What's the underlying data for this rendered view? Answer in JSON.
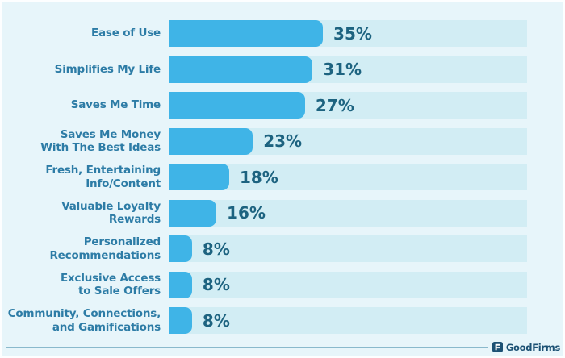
{
  "chart_data": {
    "type": "bar",
    "orientation": "horizontal",
    "title": "",
    "categories": [
      "Ease of Use",
      "Simplifies My Life",
      "Saves Me Time",
      "Saves Me Money\nWith The Best Ideas",
      "Fresh, Entertaining\nInfo/Content",
      "Valuable Loyalty\nRewards",
      "Personalized\nRecommendations",
      "Exclusive Access\nto Sale Offers",
      "Community, Connections,\nand Gamifications"
    ],
    "values": [
      35,
      31,
      27,
      23,
      18,
      16,
      8,
      8,
      8
    ],
    "value_labels": [
      "35%",
      "31%",
      "27%",
      "23%",
      "18%",
      "16%",
      "8%",
      "8%",
      "8%"
    ],
    "xlim": [
      0,
      100
    ],
    "grid": false,
    "legend": "none",
    "bar_width_pct": [
      42.9,
      40.0,
      37.9,
      23.3,
      16.7,
      13.1,
      6.3,
      6.3,
      6.3
    ],
    "colors": {
      "background": "#e7f5fa",
      "track": "#d2edf4",
      "bar": "#3fb4e7",
      "category_label": "#2d7ca6",
      "value_label": "#1d6380"
    }
  },
  "footer": {
    "brand_label": "GoodFirms",
    "brand_icon": "goodfirms-logo-icon",
    "rule_color": "#8ab9cc",
    "brand_color": "#1c5174"
  }
}
